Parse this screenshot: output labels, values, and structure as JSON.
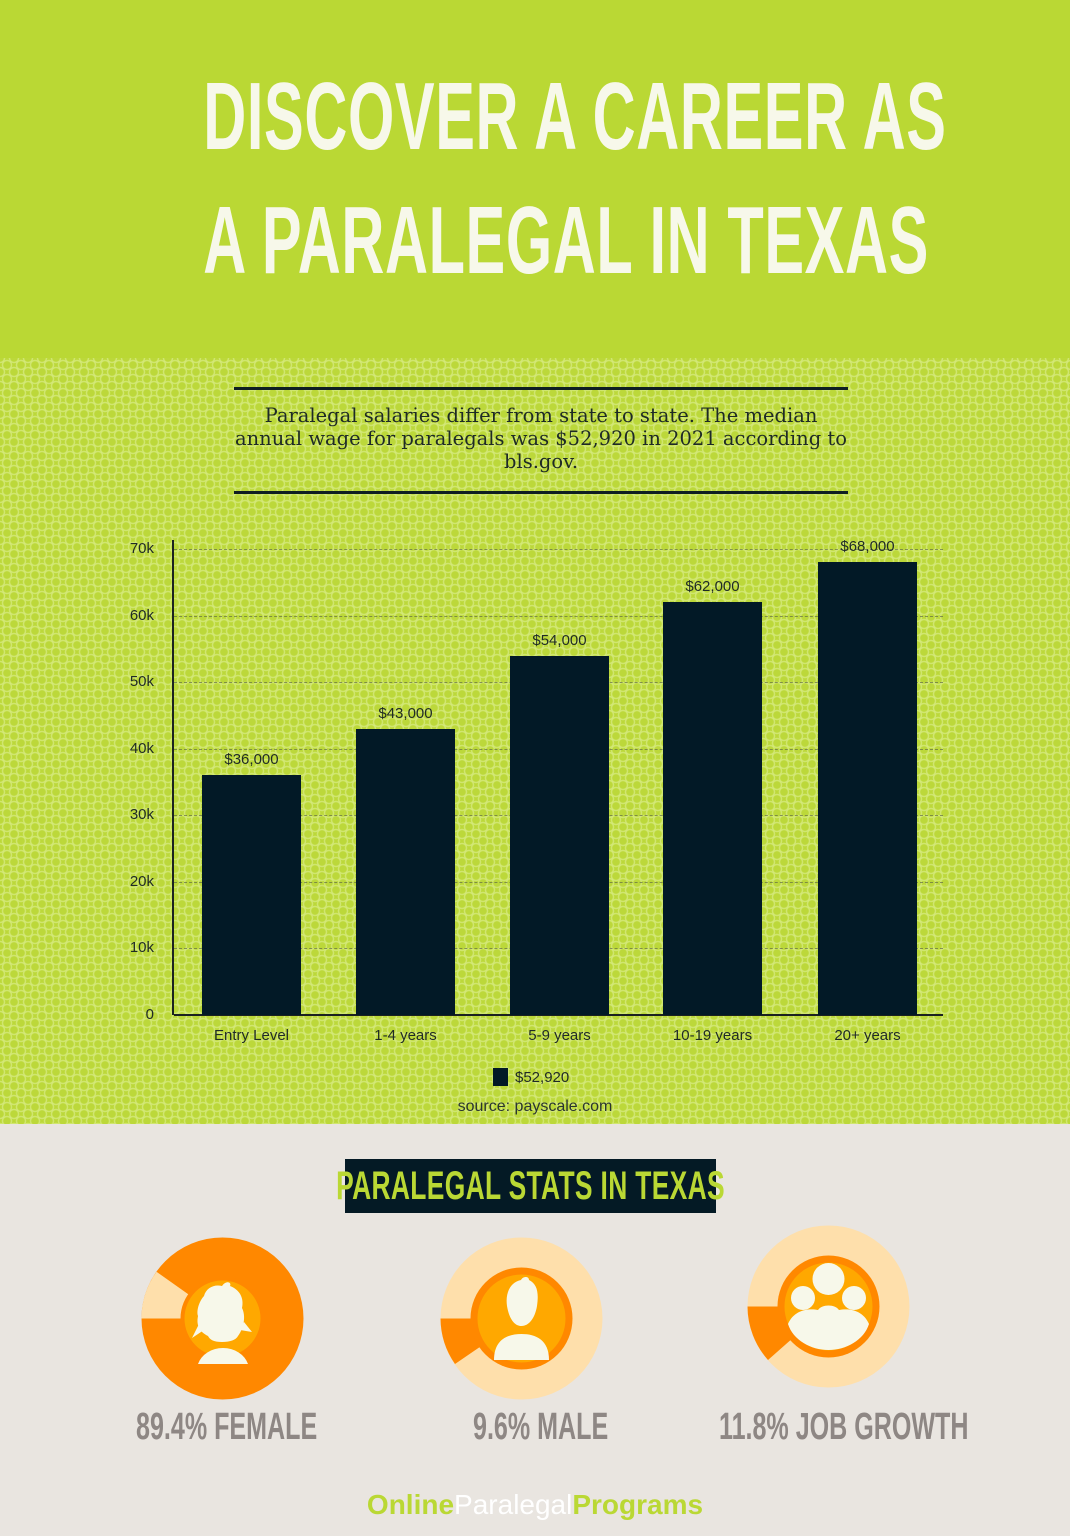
{
  "header": {
    "title_line1": "DISCOVER A CAREER AS",
    "title_line2": "A PARALEGAL IN TEXAS",
    "background_color": "#bad834",
    "text_color": "#f7f8ea"
  },
  "intro": {
    "text": "Paralegal salaries differ from state to state. The median annual wage for paralegals was $52,920 in 2021 according to bls.gov."
  },
  "chart_data": {
    "type": "bar",
    "title": "",
    "xlabel": "",
    "ylabel": "",
    "categories": [
      "Entry Level",
      "1-4 years",
      "5-9 years",
      "10-19 years",
      "20+ years"
    ],
    "series": [
      {
        "name": "$52,920",
        "values": [
          36000,
          43000,
          54000,
          62000,
          68000
        ],
        "color": "#021926"
      }
    ],
    "data_labels": [
      "$36,000",
      "$43,000",
      "$54,000",
      "$62,000",
      "$68,000"
    ],
    "ylim": [
      0,
      70000
    ],
    "yticks": [
      0,
      10000,
      20000,
      30000,
      40000,
      50000,
      60000,
      70000
    ],
    "ytick_labels": [
      "0",
      "10k",
      "20k",
      "30k",
      "40k",
      "50k",
      "60k",
      "70k"
    ],
    "grid": true,
    "legend_position": "bottom",
    "source": "source: payscale.com"
  },
  "stats": {
    "banner": "PARALEGAL STATS IN TEXAS",
    "items": [
      {
        "label": "89.4% FEMALE",
        "percent": 89.4,
        "icon": "female-user-icon"
      },
      {
        "label": "9.6% MALE",
        "percent": 9.6,
        "icon": "male-user-icon"
      },
      {
        "label": "11.8% JOB GROWTH",
        "percent": 11.8,
        "icon": "group-users-icon"
      }
    ],
    "colors": {
      "primary": "#ff8800",
      "light": "#fedfab",
      "inner": "#ffa800",
      "figure": "#f7f8ea",
      "label": "#8e8784"
    }
  },
  "brand": {
    "part1": "Online",
    "part2": "Paralegal",
    "part3": "Programs"
  }
}
